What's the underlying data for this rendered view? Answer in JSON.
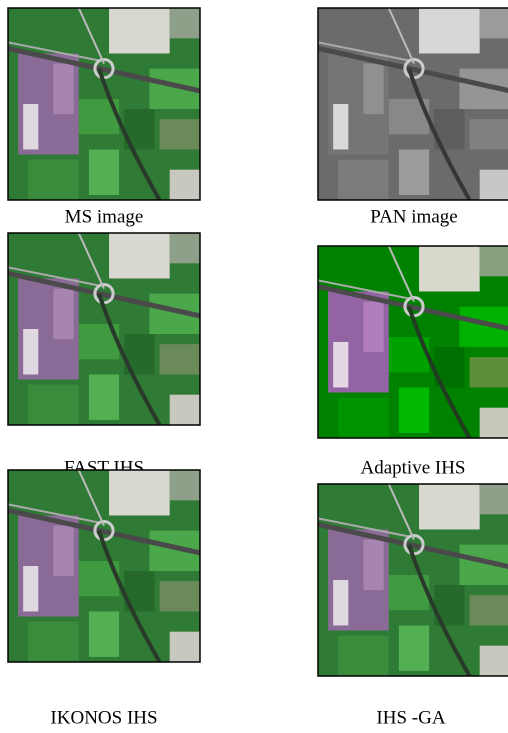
{
  "figure": {
    "panels": [
      {
        "caption": "MS image"
      },
      {
        "caption": "PAN image"
      },
      {
        "caption": "FAST IHS"
      },
      {
        "caption": "Adaptive IHS"
      },
      {
        "caption": "IKONOS IHS"
      },
      {
        "caption": "IHS -GA"
      }
    ]
  }
}
